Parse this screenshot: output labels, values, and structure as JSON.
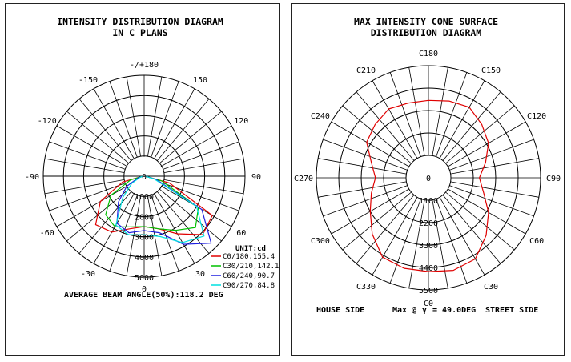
{
  "left": {
    "title_line1": "INTENSITY DISTRIBUTION DIAGRAM",
    "title_line2": "IN C PLANS",
    "angle_labels": [
      "-/+180",
      "-150",
      "150",
      "-120",
      "120",
      "-90",
      "90",
      "-60",
      "60",
      "-30",
      "30",
      "0"
    ],
    "radial_labels": [
      "0",
      "1000",
      "2000",
      "3000",
      "4000",
      "5000"
    ],
    "unit_label": "UNIT:cd",
    "legend": [
      {
        "label": "C0/180,155.4",
        "color": "#e00000"
      },
      {
        "label": "C30/210,142.1",
        "color": "#00c000"
      },
      {
        "label": "C60/240,90.7",
        "color": "#2020e0"
      },
      {
        "label": "C90/270,84.8",
        "color": "#00e0e0"
      }
    ],
    "beam_angle_text": "AVERAGE BEAM ANGLE(50%):118.2 DEG"
  },
  "right": {
    "title_line1": "MAX INTENSITY CONE SURFACE",
    "title_line2": "DISTRIBUTION DIAGRAM",
    "c_labels": [
      "C180",
      "C150",
      "C120",
      "C90",
      "C60",
      "C30",
      "C0",
      "C330",
      "C300",
      "C270",
      "C240",
      "C210"
    ],
    "radial_labels": [
      "0",
      "1100",
      "2200",
      "3300",
      "4400",
      "5500"
    ],
    "curve_color": "#e00000",
    "house_side": "HOUSE SIDE",
    "max_text_prefix": "Max @",
    "max_text_symbol": "γ",
    "max_text_value": "= 49.0DEG",
    "street_side": "STREET SIDE"
  },
  "chart_data": [
    {
      "type": "polar-intensity",
      "title": "INTENSITY DISTRIBUTION DIAGRAM IN C PLANS",
      "unit": "cd",
      "r_max": 5000,
      "series": [
        {
          "name": "C0/180,155.4",
          "angles": [
            -90,
            -75,
            -60,
            -45,
            -30,
            -15,
            0,
            15,
            30,
            45,
            60,
            75,
            90
          ],
          "values": [
            50,
            1100,
            2500,
            3400,
            3200,
            2700,
            2500,
            2700,
            3300,
            4100,
            3900,
            1300,
            50
          ]
        },
        {
          "name": "C30/210,142.1",
          "angles": [
            -90,
            -75,
            -60,
            -45,
            -30,
            -15,
            0,
            15,
            30,
            45,
            60,
            75,
            90
          ],
          "values": [
            50,
            700,
            1900,
            2700,
            2900,
            2600,
            2500,
            2700,
            3100,
            3600,
            3100,
            900,
            50
          ]
        },
        {
          "name": "C60/240,90.7",
          "angles": [
            -90,
            -75,
            -60,
            -45,
            -30,
            -15,
            0,
            15,
            30,
            45,
            60,
            75,
            90
          ],
          "values": [
            50,
            300,
            1000,
            1800,
            2700,
            2900,
            2700,
            2900,
            3900,
            4700,
            3300,
            600,
            50
          ]
        },
        {
          "name": "C90/270,84.8",
          "angles": [
            -90,
            -75,
            -60,
            -45,
            -30,
            -15,
            0,
            15,
            30,
            45,
            60,
            75,
            90
          ],
          "values": [
            50,
            200,
            700,
            1500,
            2800,
            3000,
            2900,
            3100,
            3800,
            4200,
            3000,
            500,
            50
          ]
        }
      ]
    },
    {
      "type": "polar-cone",
      "title": "MAX INTENSITY CONE SURFACE DISTRIBUTION DIAGRAM",
      "r_max": 5500,
      "series": [
        {
          "name": "",
          "c_angles": [
            0,
            15,
            30,
            45,
            60,
            75,
            90,
            105,
            120,
            135,
            150,
            165,
            180,
            195,
            210,
            225,
            240,
            255,
            270,
            285,
            300,
            315,
            330,
            345
          ],
          "values": [
            4600,
            4700,
            4600,
            4000,
            3400,
            2800,
            2500,
            2900,
            3400,
            3700,
            4000,
            3900,
            3800,
            3800,
            3900,
            3700,
            3500,
            2900,
            2600,
            2900,
            3300,
            3900,
            4500,
            4600
          ]
        }
      ]
    }
  ]
}
